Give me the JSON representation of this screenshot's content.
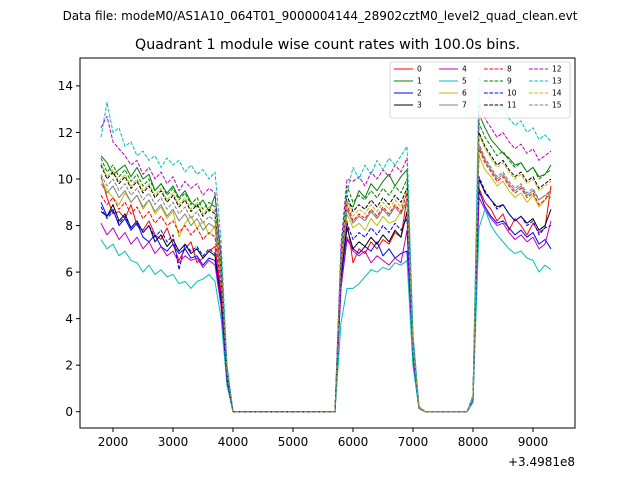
{
  "suptitle": "Data file: modeM0/AS1A10_064T01_9000004144_28902cztM0_level2_quad_clean.evt",
  "chart_data": {
    "type": "line",
    "title": "Quadrant 1 module wise count rates with 100.0s bins.",
    "xlabel": "",
    "ylabel": "",
    "x_offset_label": "+3.4981e8",
    "xlim": [
      1450,
      9700
    ],
    "ylim": [
      -0.7,
      15.2
    ],
    "xticks": [
      2000,
      3000,
      4000,
      5000,
      6000,
      7000,
      8000,
      9000
    ],
    "yticks": [
      0,
      2,
      4,
      6,
      8,
      10,
      12,
      14
    ],
    "grid": false,
    "legend_position": "top-right",
    "segments": [
      {
        "x": [
          1800,
          1900,
          2000,
          2100,
          2200,
          2300,
          2400,
          2500,
          2600,
          2700,
          2800,
          2900,
          3000,
          3100,
          3200,
          3300,
          3400,
          3500,
          3600,
          3700
        ]
      },
      {
        "x": [
          5900,
          6000,
          6100,
          6200,
          6300,
          6400,
          6500,
          6600,
          6700,
          6800,
          6900
        ]
      },
      {
        "x": [
          8100,
          8200,
          8300,
          8400,
          8500,
          8600,
          8700,
          8800,
          8900,
          9000,
          9100,
          9200,
          9300
        ]
      }
    ],
    "gaps": [
      {
        "x": [
          3700,
          3800,
          3900,
          4000,
          5700,
          5800,
          5900
        ],
        "y": [
          1,
          0.72,
          0.2,
          0,
          0,
          0.72,
          1
        ]
      },
      {
        "x": [
          6900,
          7000,
          7100,
          7200,
          7900,
          8000,
          8100
        ],
        "y": [
          1,
          0.3,
          0.02,
          0,
          0,
          0.05,
          1
        ]
      },
      {
        "x": [
          9300,
          9400
        ],
        "y": [
          1,
          0.3
        ]
      }
    ],
    "series": [
      {
        "name": "0",
        "color": "#ff0000",
        "dashed": false,
        "seg_values": [
          [
            10.1,
            9.2,
            8.5,
            8.6,
            8.3,
            8.9,
            8.0,
            7.8,
            8.2,
            7.6,
            7.4,
            7.9,
            7.2,
            6.5,
            7.0,
            7.3,
            6.4,
            6.6,
            6.9,
            7.1
          ],
          [
            8.2,
            6.4,
            7.0,
            6.8,
            7.3,
            7.0,
            7.4,
            7.2,
            7.7,
            7.5,
            9.2
          ],
          [
            9.6,
            9.0,
            8.7,
            8.2,
            8.5,
            7.8,
            8.3,
            8.0,
            7.6,
            8.1,
            7.7,
            7.9,
            9.7
          ]
        ]
      },
      {
        "name": "1",
        "color": "#008000",
        "dashed": false,
        "seg_values": [
          [
            11.0,
            10.7,
            10.2,
            10.4,
            10.6,
            10.1,
            10.5,
            10.0,
            10.2,
            9.5,
            9.8,
            9.4,
            9.7,
            9.2,
            9.5,
            9.0,
            8.8,
            9.1,
            8.6,
            9.3
          ],
          [
            9.0,
            8.8,
            9.5,
            9.2,
            9.8,
            9.5,
            9.9,
            10.2,
            9.7,
            10.1,
            10.4
          ],
          [
            12.8,
            12.2,
            11.7,
            11.4,
            11.1,
            10.9,
            10.6,
            10.7,
            10.3,
            10.5,
            10.1,
            10.2,
            10.6
          ]
        ]
      },
      {
        "name": "2",
        "color": "#0000ff",
        "dashed": false,
        "seg_values": [
          [
            9.0,
            8.4,
            8.7,
            8.0,
            8.3,
            7.8,
            8.1,
            7.5,
            7.3,
            7.6,
            7.1,
            6.9,
            7.2,
            6.8,
            7.0,
            6.6,
            6.7,
            6.3,
            6.6,
            6.5
          ],
          [
            7.4,
            7.0,
            6.8,
            7.1,
            6.9,
            7.3,
            6.7,
            7.0,
            6.6,
            6.8,
            6.9
          ],
          [
            9.5,
            8.8,
            8.4,
            8.1,
            8.2,
            7.9,
            7.6,
            7.8,
            7.5,
            7.7,
            7.2,
            7.4,
            7.0
          ]
        ]
      },
      {
        "name": "3",
        "color": "#000000",
        "dashed": false,
        "seg_values": [
          [
            8.6,
            8.4,
            8.9,
            8.2,
            8.5,
            7.9,
            8.2,
            7.7,
            8.0,
            7.3,
            7.6,
            7.1,
            7.4,
            6.9,
            7.2,
            6.8,
            7.0,
            6.6,
            6.9,
            6.7
          ],
          [
            7.9,
            7.0,
            7.3,
            7.1,
            7.5,
            7.2,
            7.6,
            7.3,
            7.8,
            7.5,
            8.6
          ],
          [
            10.0,
            9.4,
            9.1,
            8.8,
            8.9,
            8.5,
            8.2,
            8.4,
            8.1,
            8.3,
            7.8,
            8.0,
            8.7
          ]
        ]
      },
      {
        "name": "4",
        "color": "#bf00bf",
        "dashed": false,
        "seg_values": [
          [
            8.1,
            7.6,
            7.9,
            7.4,
            7.7,
            7.2,
            7.5,
            7.0,
            7.3,
            6.8,
            7.1,
            6.7,
            6.9,
            6.4,
            6.7,
            6.5,
            6.6,
            6.2,
            6.5,
            6.3
          ],
          [
            7.5,
            6.9,
            6.7,
            6.9,
            6.4,
            6.7,
            6.5,
            6.3,
            6.6,
            6.4,
            7.8
          ],
          [
            9.2,
            8.7,
            8.3,
            8.0,
            8.1,
            7.7,
            7.4,
            7.6,
            7.3,
            7.5,
            7.0,
            7.2,
            8.2
          ]
        ]
      },
      {
        "name": "5",
        "color": "#00bfbf",
        "dashed": false,
        "seg_values": [
          [
            7.4,
            7.0,
            7.2,
            6.7,
            6.9,
            6.5,
            6.4,
            6.0,
            6.3,
            5.9,
            6.1,
            5.8,
            5.9,
            5.5,
            5.6,
            5.3,
            5.6,
            5.7,
            5.9,
            5.6
          ],
          [
            5.3,
            5.3,
            5.5,
            5.8,
            6.1,
            6.0,
            6.2,
            6.1,
            6.4,
            6.3,
            6.5
          ],
          [
            7.9,
            8.7,
            8.0,
            7.6,
            7.3,
            7.0,
            6.8,
            6.9,
            6.6,
            6.5,
            6.0,
            6.3,
            6.1
          ]
        ]
      },
      {
        "name": "6",
        "color": "#bfbf00",
        "dashed": false,
        "seg_values": [
          [
            10.0,
            9.5,
            9.2,
            8.9,
            9.4,
            9.0,
            9.3,
            8.7,
            9.1,
            8.5,
            8.8,
            8.3,
            8.6,
            7.5,
            8.1,
            8.4,
            7.9,
            8.2,
            7.6,
            8.0
          ],
          [
            8.5,
            7.9,
            8.1,
            7.8,
            8.3,
            8.0,
            8.4,
            8.1,
            8.2,
            8.6,
            9.0
          ],
          [
            11.0,
            10.4,
            10.1,
            9.7,
            9.9,
            9.5,
            9.2,
            9.4,
            9.0,
            9.3,
            8.8,
            9.1,
            9.4
          ]
        ]
      },
      {
        "name": "7",
        "color": "#808080",
        "dashed": false,
        "seg_values": [
          [
            9.8,
            9.4,
            9.7,
            9.2,
            9.5,
            9.0,
            9.3,
            8.8,
            9.1,
            8.6,
            8.9,
            8.4,
            8.7,
            8.2,
            8.5,
            8.0,
            8.3,
            7.8,
            8.1,
            7.9
          ],
          [
            8.7,
            8.1,
            8.4,
            8.2,
            8.6,
            8.3,
            8.7,
            8.4,
            8.8,
            8.5,
            9.1
          ],
          [
            11.4,
            10.8,
            10.4,
            10.0,
            10.2,
            9.8,
            9.5,
            9.7,
            9.3,
            9.5,
            9.1,
            9.3,
            9.2
          ]
        ]
      },
      {
        "name": "8",
        "color": "#ff0000",
        "dashed": true,
        "seg_values": [
          [
            9.3,
            8.9,
            9.2,
            8.7,
            9.0,
            8.5,
            8.8,
            8.3,
            8.6,
            8.1,
            8.4,
            8.0,
            8.2,
            7.7,
            8.0,
            7.6,
            7.9,
            7.4,
            7.7,
            7.5
          ],
          [
            8.9,
            8.2,
            8.5,
            8.3,
            8.7,
            8.4,
            8.8,
            8.5,
            8.9,
            8.6,
            9.4
          ],
          [
            11.3,
            10.7,
            10.3,
            9.9,
            10.1,
            9.7,
            9.4,
            9.6,
            9.2,
            9.4,
            8.9,
            9.1,
            9.6
          ]
        ]
      },
      {
        "name": "9",
        "color": "#008000",
        "dashed": true,
        "seg_values": [
          [
            10.9,
            10.3,
            10.6,
            10.1,
            10.4,
            9.9,
            10.2,
            9.7,
            10.0,
            9.5,
            9.8,
            9.3,
            9.6,
            9.1,
            9.4,
            8.9,
            9.2,
            8.7,
            9.0,
            8.8
          ],
          [
            9.7,
            9.0,
            9.3,
            9.1,
            9.5,
            9.2,
            9.6,
            9.3,
            9.7,
            9.4,
            10.0
          ],
          [
            12.4,
            11.8,
            11.4,
            11.0,
            11.2,
            10.8,
            10.5,
            10.7,
            10.3,
            10.5,
            10.0,
            10.2,
            10.4
          ]
        ]
      },
      {
        "name": "10",
        "color": "#0000ff",
        "dashed": true,
        "seg_values": [
          [
            8.8,
            8.3,
            8.6,
            8.1,
            8.4,
            7.9,
            8.2,
            7.7,
            8.0,
            7.5,
            7.8,
            7.3,
            7.6,
            6.1,
            7.2,
            6.9,
            7.1,
            6.7,
            7.0,
            6.8
          ],
          [
            8.1,
            7.4,
            7.7,
            7.5,
            7.9,
            7.6,
            8.0,
            7.7,
            8.1,
            7.8,
            8.3
          ],
          [
            10.1,
            9.5,
            9.1,
            8.7,
            8.9,
            8.5,
            8.2,
            8.4,
            8.0,
            8.2,
            7.6,
            7.9,
            8.0
          ]
        ]
      },
      {
        "name": "11",
        "color": "#000000",
        "dashed": true,
        "seg_values": [
          [
            10.6,
            10.0,
            10.3,
            9.8,
            10.1,
            9.6,
            9.9,
            9.4,
            9.7,
            9.2,
            9.5,
            9.0,
            9.3,
            8.8,
            9.1,
            8.6,
            8.9,
            8.4,
            8.7,
            8.5
          ],
          [
            9.3,
            8.6,
            8.9,
            8.7,
            9.1,
            8.8,
            9.2,
            8.9,
            9.3,
            9.0,
            9.6
          ],
          [
            12.0,
            11.4,
            11.0,
            10.6,
            10.8,
            10.4,
            10.1,
            10.3,
            9.9,
            10.1,
            9.6,
            9.8,
            10.0
          ]
        ]
      },
      {
        "name": "12",
        "color": "#bf00bf",
        "dashed": true,
        "seg_values": [
          [
            12.2,
            12.7,
            11.6,
            11.3,
            11.0,
            10.6,
            10.8,
            10.2,
            10.5,
            10.0,
            10.3,
            9.8,
            10.1,
            9.5,
            9.9,
            9.6,
            9.8,
            9.3,
            9.6,
            9.4
          ],
          [
            10.0,
            9.9,
            10.1,
            9.7,
            10.3,
            10.0,
            10.4,
            10.1,
            10.6,
            10.3,
            10.9
          ],
          [
            13.2,
            12.6,
            12.2,
            11.8,
            12.0,
            11.6,
            11.3,
            11.5,
            11.1,
            11.3,
            10.8,
            11.0,
            11.2
          ]
        ]
      },
      {
        "name": "13",
        "color": "#00bfbf",
        "dashed": true,
        "seg_values": [
          [
            11.8,
            13.3,
            12.0,
            12.2,
            11.4,
            11.6,
            11.0,
            11.2,
            10.8,
            11.0,
            10.5,
            10.9,
            10.6,
            10.8,
            10.3,
            10.6,
            10.2,
            10.4,
            10.0,
            10.3
          ],
          [
            9.4,
            10.5,
            10.0,
            10.6,
            10.2,
            10.8,
            10.4,
            10.9,
            10.6,
            11.0,
            11.4
          ],
          [
            14.4,
            13.8,
            13.4,
            12.9,
            13.1,
            12.6,
            12.3,
            12.5,
            12.0,
            12.2,
            11.7,
            11.9,
            11.6
          ]
        ]
      },
      {
        "name": "14",
        "color": "#bfbf00",
        "dashed": true,
        "seg_values": [
          [
            10.7,
            10.1,
            10.4,
            9.9,
            10.2,
            9.7,
            10.0,
            9.5,
            9.8,
            9.3,
            9.6,
            9.1,
            9.4,
            8.9,
            9.2,
            8.7,
            9.0,
            8.5,
            8.8,
            8.6
          ],
          [
            9.1,
            8.4,
            8.7,
            8.5,
            8.9,
            8.6,
            9.0,
            8.7,
            9.1,
            8.8,
            9.5
          ],
          [
            11.9,
            11.3,
            10.9,
            10.5,
            10.7,
            10.3,
            10.0,
            10.2,
            9.8,
            10.0,
            9.5,
            9.7,
            9.9
          ]
        ]
      },
      {
        "name": "15",
        "color": "#808080",
        "dashed": true,
        "seg_values": [
          [
            10.2,
            9.7,
            10.0,
            9.5,
            9.8,
            9.3,
            9.6,
            9.1,
            9.4,
            8.9,
            9.2,
            8.7,
            9.0,
            8.5,
            8.8,
            8.3,
            8.6,
            8.1,
            8.4,
            8.2
          ],
          [
            8.8,
            8.1,
            8.4,
            8.2,
            8.6,
            8.3,
            8.7,
            8.4,
            8.8,
            8.5,
            9.1
          ],
          [
            11.5,
            10.9,
            10.5,
            10.1,
            10.3,
            9.9,
            9.6,
            9.8,
            9.4,
            9.6,
            9.1,
            9.3,
            9.5
          ]
        ]
      }
    ]
  }
}
